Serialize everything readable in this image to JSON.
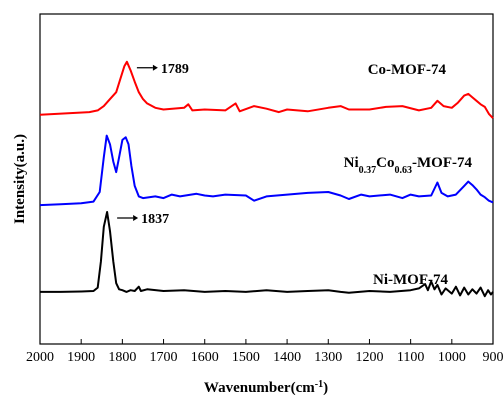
{
  "chart_data": {
    "type": "line",
    "xlabel": "Wavenumber(cm",
    "xlabel_sup": "-1",
    "xlabel_end": ")",
    "ylabel": "Intensity(a.u.)",
    "xlim": [
      2000,
      900
    ],
    "x_reversed": true,
    "x_ticks": [
      2000,
      1900,
      1800,
      1700,
      1600,
      1500,
      1400,
      1300,
      1200,
      1100,
      1000,
      900
    ],
    "y_ticks_shown": false,
    "grid": false,
    "legend": "none",
    "series": [
      {
        "label_parts": [
          {
            "t": "Co-MOF-74",
            "sub": false
          }
        ],
        "color": "#ff0000",
        "offset": 2.0,
        "points": [
          [
            2000,
            0.04
          ],
          [
            1960,
            0.05
          ],
          [
            1920,
            0.06
          ],
          [
            1880,
            0.07
          ],
          [
            1860,
            0.09
          ],
          [
            1845,
            0.14
          ],
          [
            1830,
            0.22
          ],
          [
            1815,
            0.3
          ],
          [
            1805,
            0.45
          ],
          [
            1795,
            0.6
          ],
          [
            1789,
            0.65
          ],
          [
            1780,
            0.55
          ],
          [
            1770,
            0.42
          ],
          [
            1760,
            0.3
          ],
          [
            1750,
            0.22
          ],
          [
            1740,
            0.17
          ],
          [
            1720,
            0.12
          ],
          [
            1700,
            0.1
          ],
          [
            1650,
            0.12
          ],
          [
            1640,
            0.16
          ],
          [
            1630,
            0.09
          ],
          [
            1600,
            0.1
          ],
          [
            1550,
            0.09
          ],
          [
            1525,
            0.17
          ],
          [
            1515,
            0.08
          ],
          [
            1480,
            0.14
          ],
          [
            1450,
            0.11
          ],
          [
            1420,
            0.07
          ],
          [
            1400,
            0.1
          ],
          [
            1350,
            0.08
          ],
          [
            1300,
            0.12
          ],
          [
            1270,
            0.14
          ],
          [
            1250,
            0.1
          ],
          [
            1200,
            0.1
          ],
          [
            1160,
            0.13
          ],
          [
            1120,
            0.14
          ],
          [
            1080,
            0.09
          ],
          [
            1050,
            0.12
          ],
          [
            1035,
            0.2
          ],
          [
            1020,
            0.14
          ],
          [
            1000,
            0.12
          ],
          [
            985,
            0.18
          ],
          [
            970,
            0.26
          ],
          [
            960,
            0.28
          ],
          [
            950,
            0.24
          ],
          [
            940,
            0.2
          ],
          [
            930,
            0.16
          ],
          [
            920,
            0.13
          ],
          [
            910,
            0.05
          ],
          [
            900,
            0.0
          ]
        ]
      },
      {
        "label_parts": [
          {
            "t": "Ni",
            "sub": false
          },
          {
            "t": "0.37",
            "sub": true
          },
          {
            "t": "Co",
            "sub": false
          },
          {
            "t": "0.63",
            "sub": true
          },
          {
            "t": "-MOF-74",
            "sub": false
          }
        ],
        "color": "#0000ff",
        "offset": 1.0,
        "points": [
          [
            2000,
            0.0
          ],
          [
            1950,
            0.01
          ],
          [
            1900,
            0.02
          ],
          [
            1870,
            0.04
          ],
          [
            1855,
            0.15
          ],
          [
            1845,
            0.55
          ],
          [
            1838,
            0.8
          ],
          [
            1830,
            0.7
          ],
          [
            1822,
            0.5
          ],
          [
            1815,
            0.38
          ],
          [
            1808,
            0.55
          ],
          [
            1800,
            0.75
          ],
          [
            1792,
            0.78
          ],
          [
            1785,
            0.7
          ],
          [
            1778,
            0.45
          ],
          [
            1770,
            0.22
          ],
          [
            1760,
            0.1
          ],
          [
            1750,
            0.08
          ],
          [
            1720,
            0.1
          ],
          [
            1700,
            0.08
          ],
          [
            1680,
            0.12
          ],
          [
            1660,
            0.1
          ],
          [
            1620,
            0.13
          ],
          [
            1600,
            0.11
          ],
          [
            1580,
            0.1
          ],
          [
            1550,
            0.12
          ],
          [
            1500,
            0.11
          ],
          [
            1480,
            0.05
          ],
          [
            1450,
            0.1
          ],
          [
            1400,
            0.12
          ],
          [
            1350,
            0.14
          ],
          [
            1300,
            0.15
          ],
          [
            1270,
            0.11
          ],
          [
            1250,
            0.07
          ],
          [
            1220,
            0.12
          ],
          [
            1200,
            0.1
          ],
          [
            1150,
            0.12
          ],
          [
            1120,
            0.08
          ],
          [
            1100,
            0.12
          ],
          [
            1080,
            0.1
          ],
          [
            1050,
            0.11
          ],
          [
            1035,
            0.26
          ],
          [
            1025,
            0.14
          ],
          [
            1010,
            0.1
          ],
          [
            990,
            0.12
          ],
          [
            970,
            0.22
          ],
          [
            960,
            0.27
          ],
          [
            950,
            0.23
          ],
          [
            940,
            0.18
          ],
          [
            930,
            0.12
          ],
          [
            920,
            0.09
          ],
          [
            910,
            0.05
          ],
          [
            900,
            0.03
          ]
        ]
      },
      {
        "label_parts": [
          {
            "t": "Ni-MOF-74",
            "sub": false
          }
        ],
        "color": "#000000",
        "offset": 0.0,
        "points": [
          [
            2000,
            0.0
          ],
          [
            1950,
            0.0
          ],
          [
            1900,
            0.005
          ],
          [
            1870,
            0.01
          ],
          [
            1860,
            0.05
          ],
          [
            1852,
            0.35
          ],
          [
            1845,
            0.75
          ],
          [
            1837,
            0.92
          ],
          [
            1830,
            0.7
          ],
          [
            1822,
            0.35
          ],
          [
            1815,
            0.1
          ],
          [
            1808,
            0.03
          ],
          [
            1800,
            0.02
          ],
          [
            1790,
            0.0
          ],
          [
            1780,
            0.02
          ],
          [
            1770,
            0.01
          ],
          [
            1760,
            0.06
          ],
          [
            1755,
            0.01
          ],
          [
            1740,
            0.03
          ],
          [
            1700,
            0.01
          ],
          [
            1650,
            0.02
          ],
          [
            1600,
            0.0
          ],
          [
            1550,
            0.01
          ],
          [
            1500,
            0.0
          ],
          [
            1450,
            0.02
          ],
          [
            1400,
            0.0
          ],
          [
            1350,
            0.01
          ],
          [
            1300,
            0.02
          ],
          [
            1270,
            0.0
          ],
          [
            1250,
            -0.01
          ],
          [
            1200,
            0.01
          ],
          [
            1150,
            0.0
          ],
          [
            1100,
            0.02
          ],
          [
            1080,
            0.04
          ],
          [
            1065,
            0.09
          ],
          [
            1058,
            0.02
          ],
          [
            1050,
            0.12
          ],
          [
            1042,
            0.03
          ],
          [
            1035,
            0.08
          ],
          [
            1025,
            -0.03
          ],
          [
            1015,
            0.04
          ],
          [
            1000,
            -0.02
          ],
          [
            990,
            0.06
          ],
          [
            980,
            -0.04
          ],
          [
            970,
            0.05
          ],
          [
            960,
            -0.03
          ],
          [
            950,
            0.03
          ],
          [
            940,
            -0.02
          ],
          [
            930,
            0.05
          ],
          [
            920,
            -0.05
          ],
          [
            912,
            0.02
          ],
          [
            905,
            -0.03
          ],
          [
            900,
            0.0
          ]
        ]
      }
    ],
    "annotations": [
      {
        "text": "1789",
        "x": 1789,
        "series_index": 0
      },
      {
        "text": "1837",
        "x": 1837,
        "series_index": 2
      }
    ]
  }
}
